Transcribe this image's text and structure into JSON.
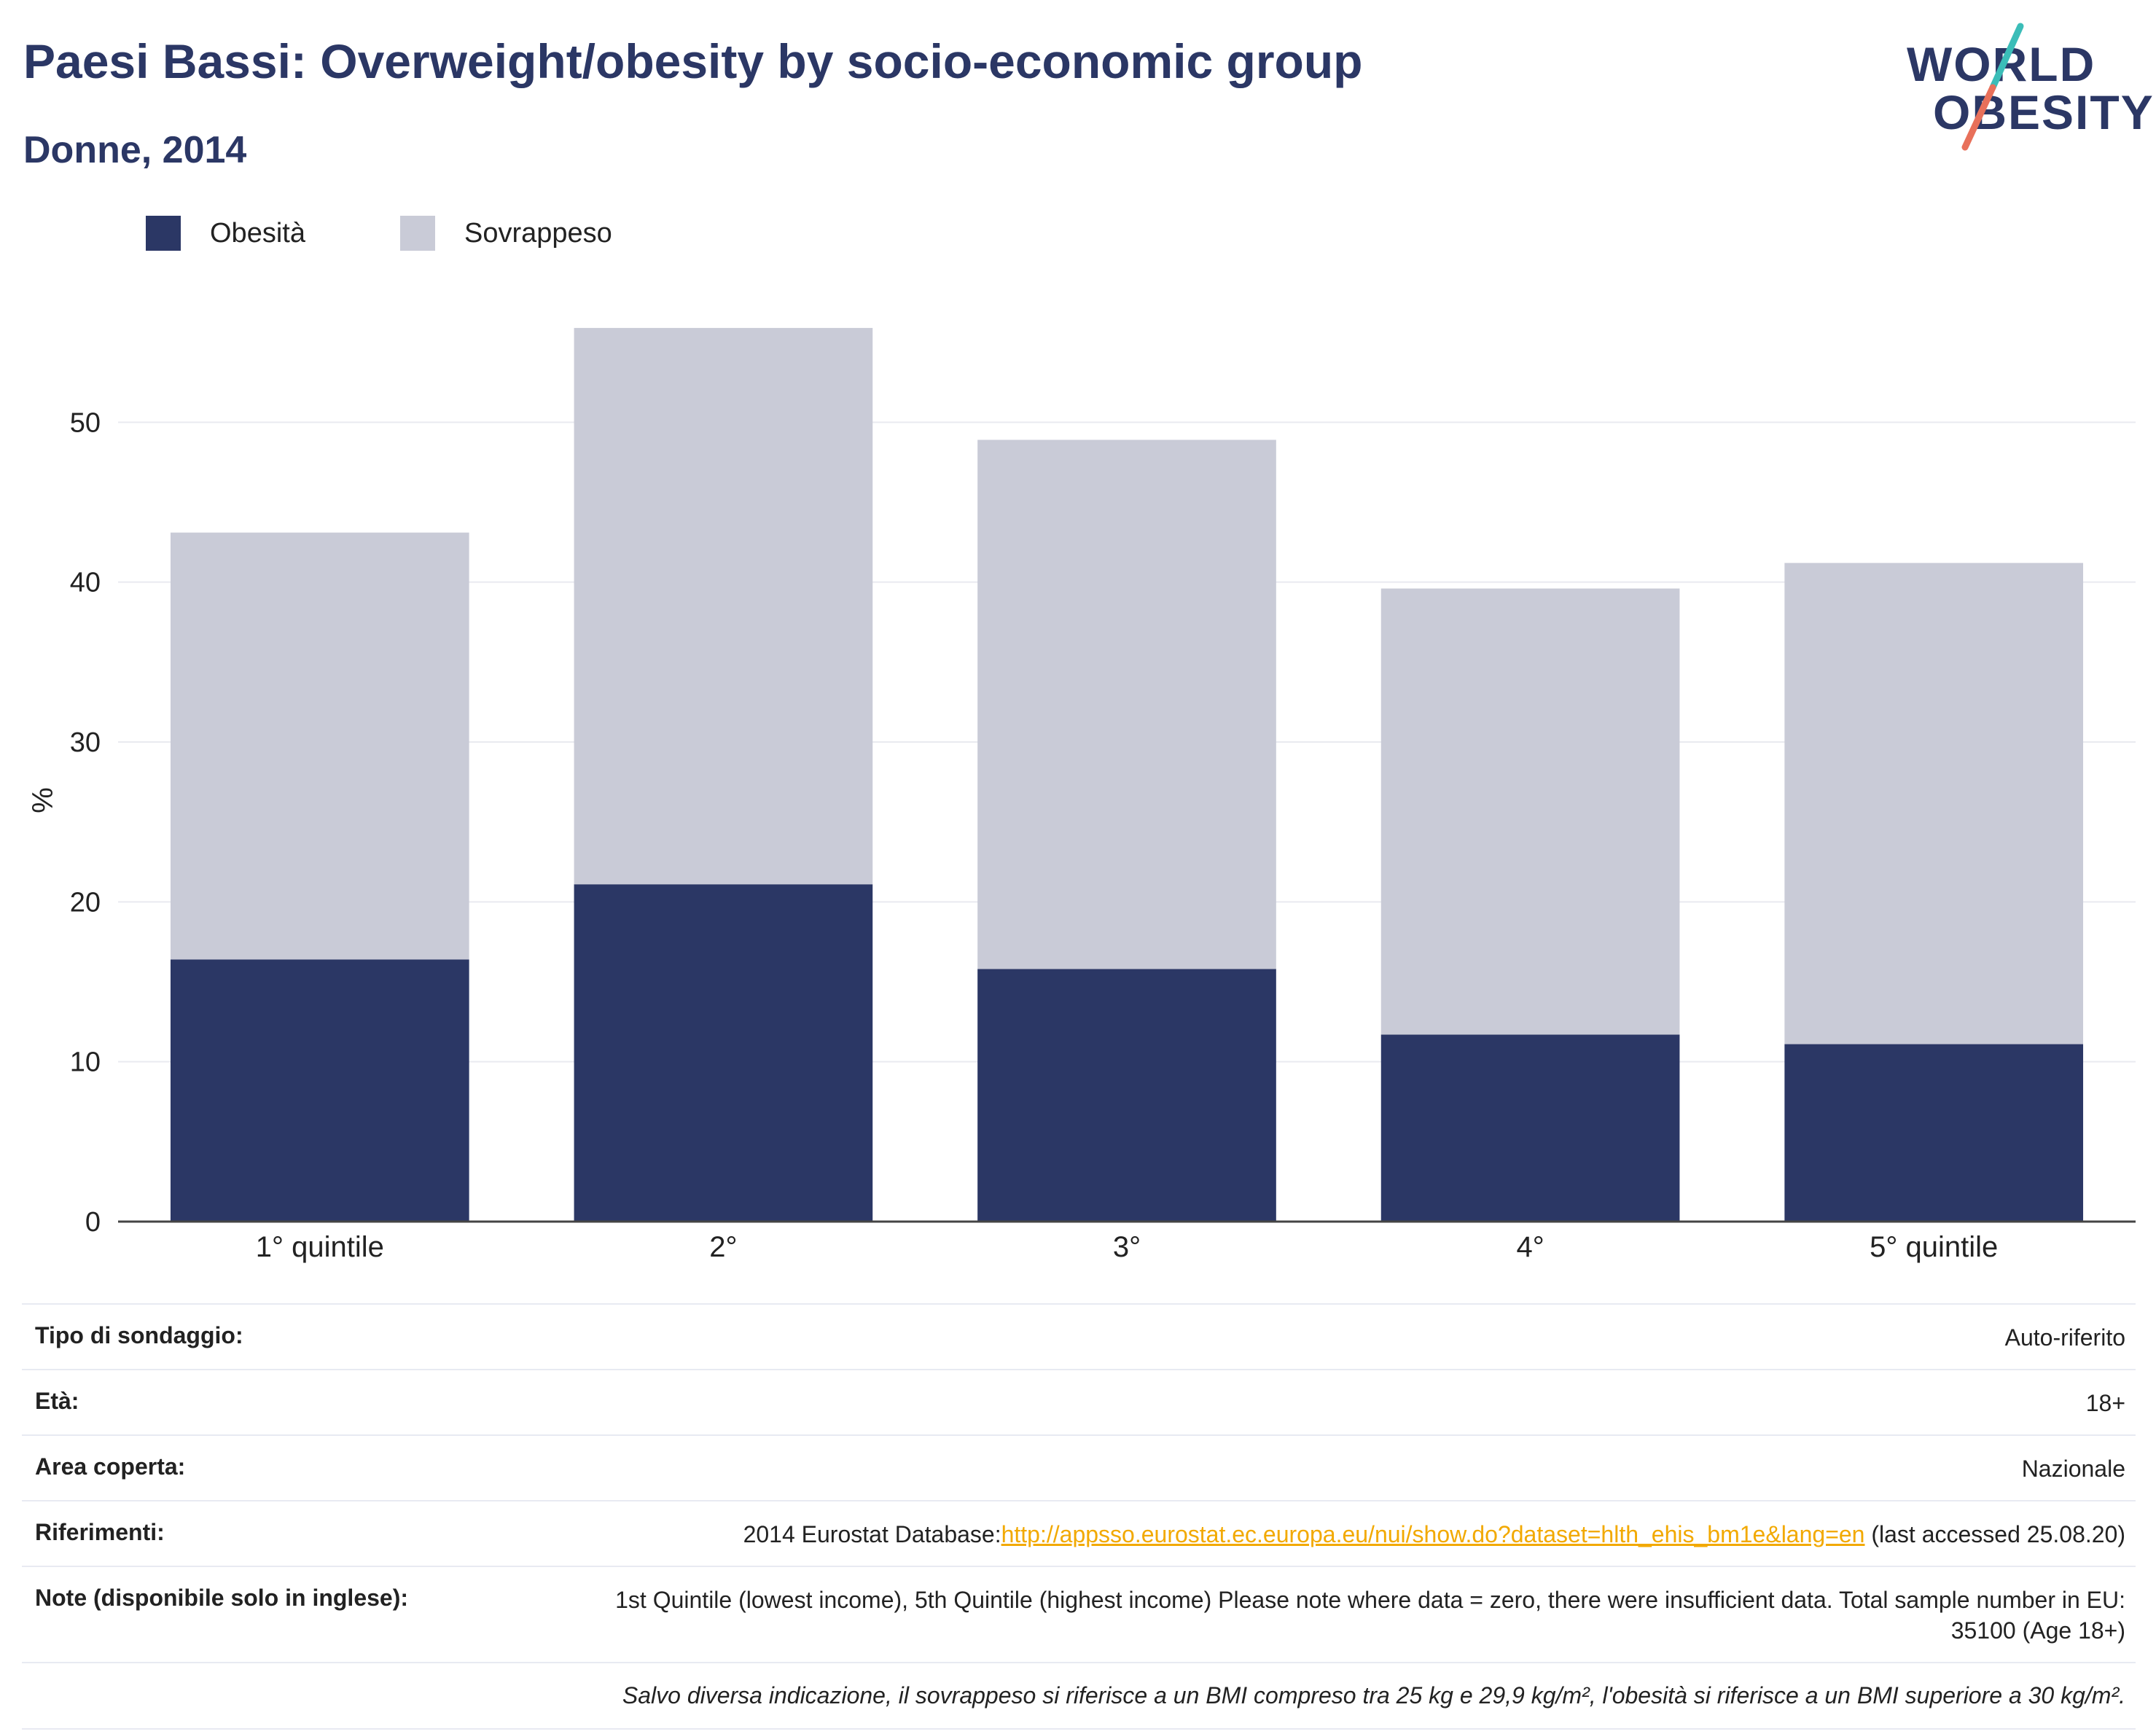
{
  "header": {
    "title": "Paesi Bassi: Overweight/obesity by socio-economic group",
    "subtitle": "Donne, 2014"
  },
  "logo": {
    "line1": "WORLD",
    "line2": "OBESITY"
  },
  "colors": {
    "obesity": "#2b3765",
    "overweight": "#c9cbd7",
    "accent": "#f2a900"
  },
  "chart_data": {
    "type": "bar",
    "stacked": true,
    "categories": [
      "1° quintile",
      "2°",
      "3°",
      "4°",
      "5° quintile"
    ],
    "series": [
      {
        "name": "Obesità",
        "values": [
          16.4,
          21.1,
          15.8,
          11.7,
          11.1
        ]
      },
      {
        "name": "Sovrappeso",
        "values": [
          26.7,
          34.8,
          33.1,
          27.9,
          30.1
        ]
      }
    ],
    "totals": [
      43.1,
      55.9,
      48.9,
      39.6,
      41.2
    ],
    "ylabel": "%",
    "yticks": [
      0,
      10,
      20,
      30,
      40,
      50
    ],
    "ylim": [
      0,
      60
    ],
    "grid": true,
    "legend": "top-left"
  },
  "info": {
    "rows": [
      {
        "key": "Tipo di sondaggio:",
        "value": "Auto-riferito"
      },
      {
        "key": "Età:",
        "value": "18+"
      },
      {
        "key": "Area coperta:",
        "value": "Nazionale"
      }
    ],
    "references": {
      "key": "Riferimenti:",
      "prefix": "2014 Eurostat Database:",
      "link": "http://appsso.eurostat.ec.europa.eu/nui/show.do?dataset=hlth_ehis_bm1e&lang=en",
      "suffix": " (last accessed 25.08.20)"
    },
    "notes": {
      "key": "Note (disponibile solo in inglese):",
      "value": "1st Quintile (lowest income), 5th Quintile (highest income) Please note where data = zero, there were insufficient data. Total sample number in EU: 35100 (Age 18+)"
    },
    "footnote": "Salvo diversa indicazione, il sovrappeso si riferisce a un BMI compreso tra 25 kg e 29,9 kg/m², l'obesità si riferisce a un BMI superiore a 30 kg/m²."
  }
}
